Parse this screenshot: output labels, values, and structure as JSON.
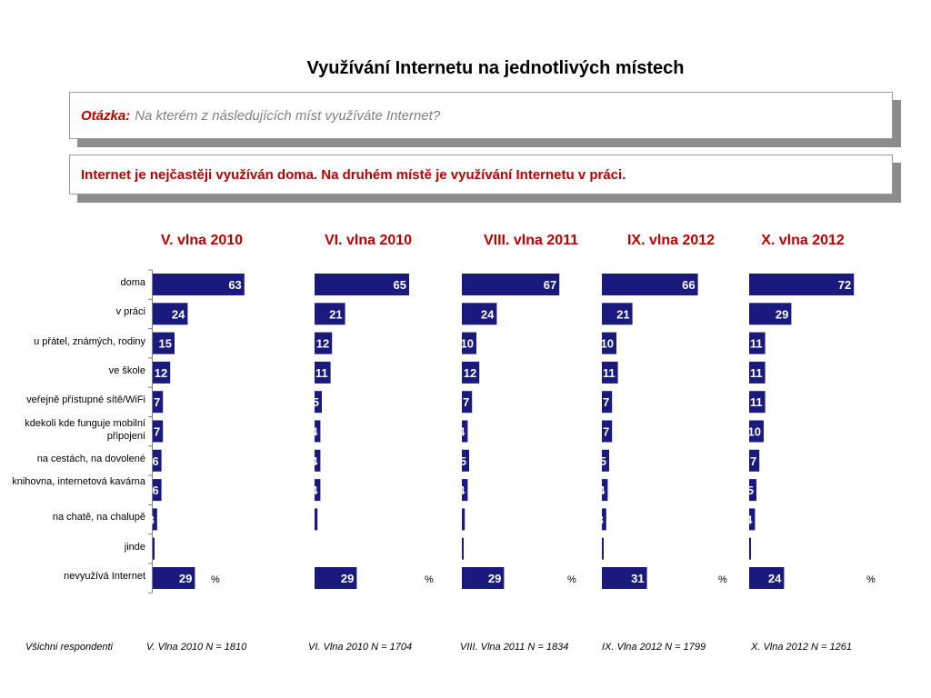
{
  "title": "Využívání Internetu na jednotlivých místech",
  "question": {
    "label": "Otázka:",
    "text": "Na kterém z následujících míst využíváte Internet?"
  },
  "finding": "Internet je nejčastěji využíván doma. Na druhém místě je využívání Internetu v práci.",
  "percent_sign": "%",
  "colors": {
    "bar": "#1a1a7e",
    "bar_text": "#ffffff",
    "title_red": "#c00000"
  },
  "footer": {
    "respondents": "Všichni respondenti",
    "samples": [
      "V. Vlna 2010 N = 1810",
      "VI. Vlna 2010 N = 1704",
      "VIII. Vlna 2011 N = 1834",
      "IX. Vlna 2012 N = 1799",
      "X. Vlna 2012 N = 1261"
    ]
  },
  "chart_data": {
    "type": "bar",
    "orientation": "horizontal",
    "unit": "%",
    "categories": [
      "doma",
      "v práci",
      "u přátel, známých, rodiny",
      "ve škole",
      "veřejně přístupné sítě/WiFi",
      "kdekoli kde funguje mobilní připojení",
      "na cestách, na dovolené",
      "knihovna, internetová kavárna",
      "na chatě, na chalupě",
      "jinde",
      "nevyužívá Internet"
    ],
    "series": [
      {
        "name": "V. vlna 2010",
        "values": [
          63,
          24,
          15,
          12,
          7,
          7,
          6,
          6,
          3,
          1,
          29
        ]
      },
      {
        "name": "VI. vlna 2010",
        "values": [
          65,
          21,
          12,
          11,
          5,
          4,
          4,
          4,
          2,
          null,
          29
        ]
      },
      {
        "name": "VIII. vlna 2011",
        "values": [
          67,
          24,
          10,
          12,
          7,
          4,
          5,
          4,
          2,
          1,
          29
        ]
      },
      {
        "name": "IX. vlna 2012",
        "values": [
          66,
          21,
          10,
          11,
          7,
          7,
          5,
          4,
          3,
          1,
          31
        ]
      },
      {
        "name": "X. vlna 2012",
        "values": [
          72,
          29,
          11,
          11,
          11,
          10,
          7,
          5,
          4,
          1,
          24
        ]
      }
    ]
  }
}
